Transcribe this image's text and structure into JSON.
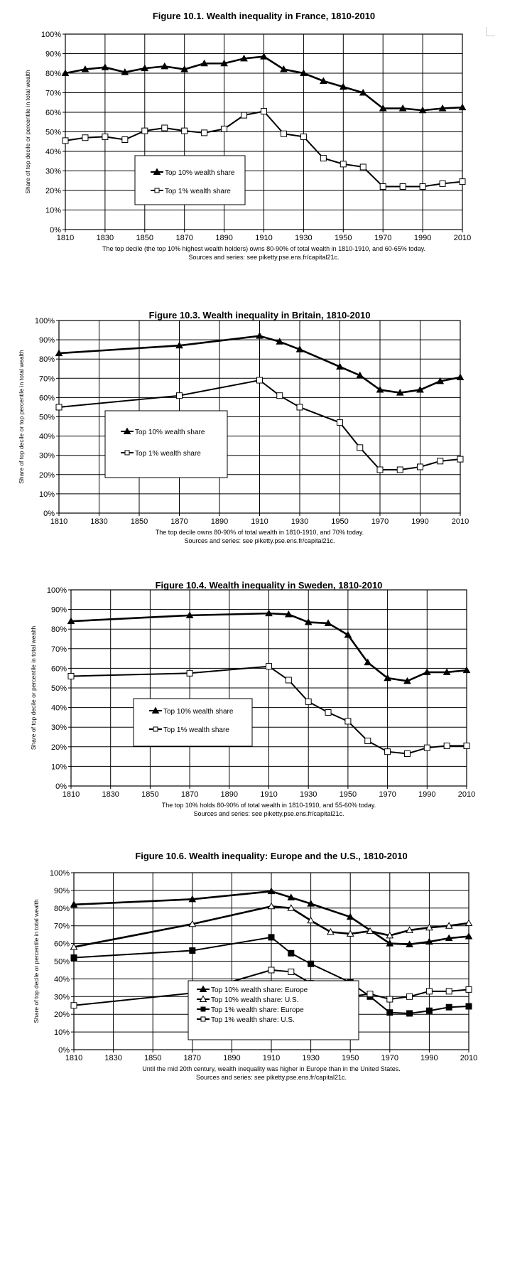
{
  "chart_data": [
    {
      "type": "line",
      "title": "Figure 10.1. Wealth inequality in France, 1810-2010",
      "ylabel": "Share of top decile or percentile in total wealth",
      "xlabel": "",
      "caption": [
        "The top decile (the top 10% highest wealth holders) owns 80-90% of total wealth in 1810-1910, and 60-65% today.",
        "Sources and series: see piketty.pse.ens.fr/capital21c."
      ],
      "xlim": [
        1810,
        2010
      ],
      "ylim": [
        0,
        100
      ],
      "x_ticks": [
        "1810",
        "1830",
        "1850",
        "1870",
        "1890",
        "1910",
        "1930",
        "1950",
        "1970",
        "1990",
        "2010"
      ],
      "y_ticks": [
        "0%",
        "10%",
        "20%",
        "30%",
        "40%",
        "50%",
        "60%",
        "70%",
        "80%",
        "90%",
        "100%"
      ],
      "grid": true,
      "legend_position": "center-left",
      "series": [
        {
          "name": "Top 10% wealth share",
          "marker": "triangle-filled",
          "x": [
            1810,
            1820,
            1830,
            1840,
            1850,
            1860,
            1870,
            1880,
            1890,
            1900,
            1910,
            1920,
            1930,
            1940,
            1950,
            1960,
            1970,
            1980,
            1990,
            2000,
            2010
          ],
          "values": [
            80,
            82,
            83,
            80.5,
            82.5,
            83.5,
            82,
            85,
            85,
            87.5,
            88.5,
            82,
            80,
            76,
            73,
            70,
            62,
            62,
            61,
            62,
            62.5
          ]
        },
        {
          "name": "Top 1% wealth share",
          "marker": "square-open",
          "x": [
            1810,
            1820,
            1830,
            1840,
            1850,
            1860,
            1870,
            1880,
            1890,
            1900,
            1910,
            1920,
            1930,
            1940,
            1950,
            1960,
            1970,
            1980,
            1990,
            2000,
            2010
          ],
          "values": [
            45.5,
            47,
            47.5,
            46,
            50.5,
            52,
            50.5,
            49.5,
            51.5,
            58.5,
            60.5,
            49,
            47.5,
            36.5,
            33.5,
            32,
            22,
            22,
            22,
            23.5,
            24.5
          ]
        }
      ]
    },
    {
      "type": "line",
      "title": "Figure 10.3. Wealth inequality in Britain, 1810-2010",
      "ylabel": "Share of top decile or top percentile in total wealth",
      "xlabel": "",
      "caption": [
        "The top decile owns 80-90% of total wealth in 1810-1910, and 70% today.",
        "Sources and series: see piketty.pse.ens.fr/capital21c."
      ],
      "xlim": [
        1810,
        2010
      ],
      "ylim": [
        0,
        100
      ],
      "x_ticks": [
        "1810",
        "1830",
        "1850",
        "1870",
        "1890",
        "1910",
        "1930",
        "1950",
        "1970",
        "1990",
        "2010"
      ],
      "y_ticks": [
        "0%",
        "10%",
        "20%",
        "30%",
        "40%",
        "50%",
        "60%",
        "70%",
        "80%",
        "90%",
        "100%"
      ],
      "grid": true,
      "legend_position": "center-left",
      "series": [
        {
          "name": "Top 10% wealth share",
          "marker": "triangle-filled",
          "x": [
            1810,
            1870,
            1910,
            1920,
            1930,
            1950,
            1960,
            1970,
            1980,
            1990,
            2000,
            2010
          ],
          "values": [
            83,
            87,
            92,
            89,
            85,
            76,
            71.5,
            64,
            62.5,
            64,
            68.5,
            70.5
          ]
        },
        {
          "name": "Top 1% wealth share",
          "marker": "square-open",
          "x": [
            1810,
            1870,
            1910,
            1920,
            1930,
            1950,
            1960,
            1970,
            1980,
            1990,
            2000,
            2010
          ],
          "values": [
            55,
            61,
            69,
            61,
            55,
            47,
            34,
            22.5,
            22.5,
            24,
            27,
            28
          ]
        }
      ]
    },
    {
      "type": "line",
      "title": "Figure 10.4. Wealth inequality in Sweden, 1810-2010",
      "ylabel": "Share of top decile or percentile in total wealth",
      "xlabel": "",
      "caption": [
        "The top 10% holds 80-90% of total wealth in 1810-1910, and 55-60% today.",
        "Sources and series: see piketty.pse.ens.fr/capital21c."
      ],
      "xlim": [
        1810,
        2010
      ],
      "ylim": [
        0,
        100
      ],
      "x_ticks": [
        "1810",
        "1830",
        "1850",
        "1870",
        "1890",
        "1910",
        "1930",
        "1950",
        "1970",
        "1990",
        "2010"
      ],
      "y_ticks": [
        "0%",
        "10%",
        "20%",
        "30%",
        "40%",
        "50%",
        "60%",
        "70%",
        "80%",
        "90%",
        "100%"
      ],
      "grid": true,
      "legend_position": "center-left",
      "series": [
        {
          "name": "Top 10% wealth share",
          "marker": "triangle-filled",
          "x": [
            1810,
            1870,
            1910,
            1920,
            1930,
            1940,
            1950,
            1960,
            1970,
            1980,
            1990,
            2000,
            2010
          ],
          "values": [
            84,
            87,
            88,
            87.5,
            83.5,
            83,
            77,
            63,
            55,
            53.5,
            58,
            58,
            59
          ]
        },
        {
          "name": "Top 1% wealth share",
          "marker": "square-open",
          "x": [
            1810,
            1870,
            1910,
            1920,
            1930,
            1940,
            1950,
            1960,
            1970,
            1980,
            1990,
            2000,
            2010
          ],
          "values": [
            56,
            57.5,
            61,
            54,
            43,
            37.5,
            33,
            23,
            17.5,
            16.5,
            19.5,
            20.5,
            20.5
          ]
        }
      ]
    },
    {
      "type": "line",
      "title": "Figure 10.6. Wealth inequality: Europe and the U.S., 1810-2010",
      "ylabel": "Share of top decile or percentile in total wealth",
      "xlabel": "",
      "caption": [
        "Until the mid 20th century, wealth inequality was higher in Europe than in the United States.",
        "Sources and series: see piketty.pse.ens.fr/capital21c."
      ],
      "xlim": [
        1810,
        2010
      ],
      "ylim": [
        0,
        100
      ],
      "x_ticks": [
        "1810",
        "1830",
        "1850",
        "1870",
        "1890",
        "1910",
        "1930",
        "1950",
        "1970",
        "1990",
        "2010"
      ],
      "y_ticks": [
        "0%",
        "10%",
        "20%",
        "30%",
        "40%",
        "50%",
        "60%",
        "70%",
        "80%",
        "90%",
        "100%"
      ],
      "grid": true,
      "legend_position": "bottom-center",
      "series": [
        {
          "name": "Top 10% wealth share: Europe",
          "marker": "triangle-filled",
          "x": [
            1810,
            1870,
            1910,
            1920,
            1930,
            1950,
            1970,
            1980,
            1990,
            2000,
            2010
          ],
          "values": [
            82,
            85,
            89.5,
            86,
            82.5,
            75,
            60,
            59.5,
            61,
            63,
            64
          ]
        },
        {
          "name": "Top 10% wealth share: U.S.",
          "marker": "triangle-open",
          "x": [
            1810,
            1870,
            1910,
            1920,
            1930,
            1940,
            1950,
            1960,
            1970,
            1980,
            1990,
            2000,
            2010
          ],
          "values": [
            58,
            71,
            81,
            80,
            73,
            66.5,
            65.5,
            67,
            64.5,
            67.5,
            69,
            70,
            71.5
          ]
        },
        {
          "name": "Top 1% wealth share: Europe",
          "marker": "square-filled",
          "x": [
            1810,
            1870,
            1910,
            1920,
            1930,
            1950,
            1960,
            1970,
            1980,
            1990,
            2000,
            2010
          ],
          "values": [
            52,
            56,
            63.5,
            54.5,
            48.5,
            38,
            30,
            21,
            20.5,
            22,
            24,
            24.5
          ]
        },
        {
          "name": "Top 1% wealth share: U.S.",
          "marker": "square-open",
          "x": [
            1810,
            1870,
            1910,
            1920,
            1930,
            1940,
            1950,
            1960,
            1970,
            1980,
            1990,
            2000,
            2010
          ],
          "values": [
            25,
            32,
            45,
            44,
            37.5,
            30.5,
            30,
            31.5,
            28.5,
            30,
            33,
            33,
            34
          ]
        }
      ]
    }
  ]
}
